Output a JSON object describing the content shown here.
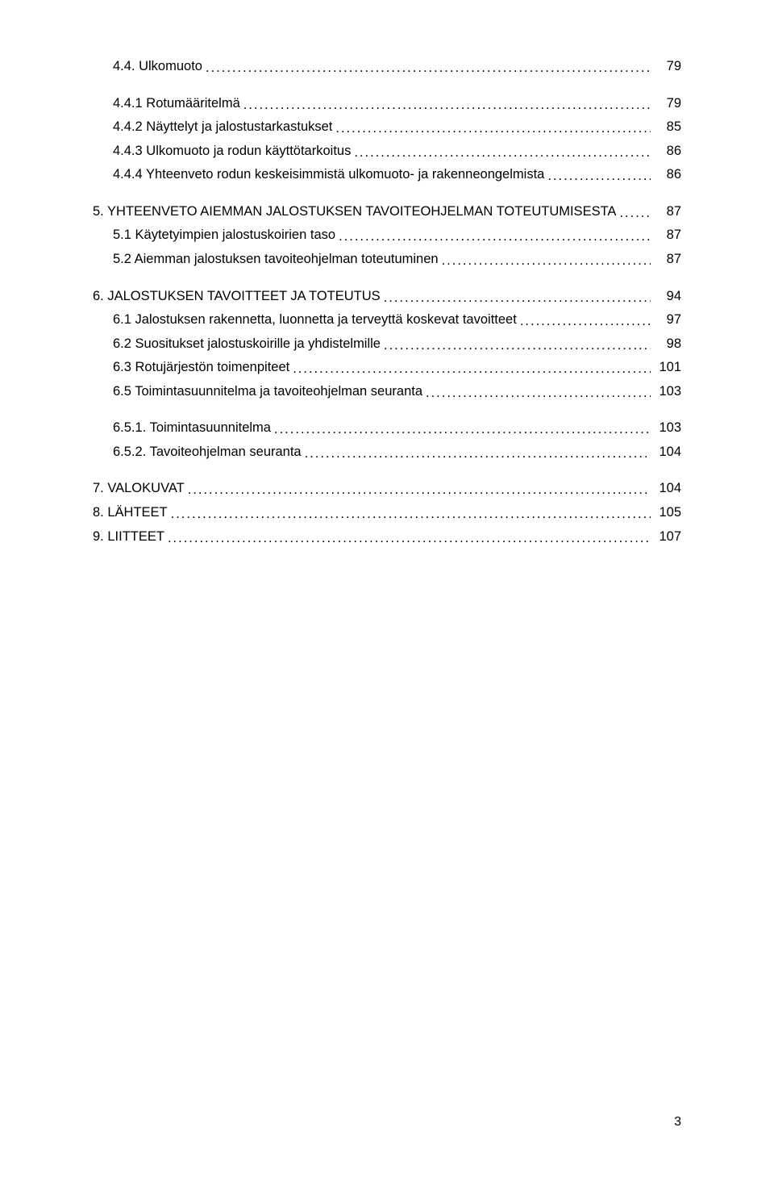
{
  "text_color": "#000000",
  "background_color": "#ffffff",
  "font_family": "Arial, Helvetica, sans-serif",
  "base_font_size_pt": 12,
  "toc": [
    {
      "label": "4.4. Ulkomuoto",
      "page": "79",
      "indent": 1,
      "gap": false
    },
    {
      "label": "4.4.1 Rotumääritelmä",
      "page": "79",
      "indent": 2,
      "gap": true
    },
    {
      "label": "4.4.2 Näyttelyt ja jalostustarkastukset",
      "page": "85",
      "indent": 2,
      "gap": false
    },
    {
      "label": "4.4.3 Ulkomuoto ja rodun käyttötarkoitus",
      "page": "86",
      "indent": 2,
      "gap": false
    },
    {
      "label": "4.4.4 Yhteenveto rodun keskeisimmistä ulkomuoto- ja rakenneongelmista",
      "page": "86",
      "indent": 2,
      "gap": false
    },
    {
      "label": "5. YHTEENVETO AIEMMAN JALOSTUKSEN TAVOITEOHJELMAN TOTEUTUMISESTA",
      "page": "87",
      "indent": 0,
      "gap": true
    },
    {
      "label": "5.1 Käytetyimpien jalostuskoirien taso",
      "page": "87",
      "indent": 1,
      "gap": false
    },
    {
      "label": "5.2 Aiemman jalostuksen tavoiteohjelman toteutuminen",
      "page": "87",
      "indent": 1,
      "gap": false
    },
    {
      "label": "6. JALOSTUKSEN TAVOITTEET JA TOTEUTUS",
      "page": "94",
      "indent": 0,
      "gap": true
    },
    {
      "label": "6.1 Jalostuksen rakennetta, luonnetta ja terveyttä koskevat tavoitteet",
      "page": "97",
      "indent": 1,
      "gap": false
    },
    {
      "label": "6.2 Suositukset jalostuskoirille ja yhdistelmille",
      "page": "98",
      "indent": 1,
      "gap": false
    },
    {
      "label": "6.3 Rotujärjestön toimenpiteet",
      "page": "101",
      "indent": 1,
      "gap": false
    },
    {
      "label": "6.5 Toimintasuunnitelma ja tavoiteohjelman seuranta",
      "page": "103",
      "indent": 1,
      "gap": false
    },
    {
      "label": "6.5.1. Toimintasuunnitelma",
      "page": "103",
      "indent": 2,
      "gap": true
    },
    {
      "label": "6.5.2. Tavoiteohjelman seuranta",
      "page": "104",
      "indent": 2,
      "gap": false
    },
    {
      "label": "7. VALOKUVAT",
      "page": "104",
      "indent": 0,
      "gap": true
    },
    {
      "label": "8. LÄHTEET",
      "page": "105",
      "indent": 0,
      "gap": false
    },
    {
      "label": "9. LIITTEET",
      "page": "107",
      "indent": 0,
      "gap": false
    }
  ],
  "page_number": "3"
}
